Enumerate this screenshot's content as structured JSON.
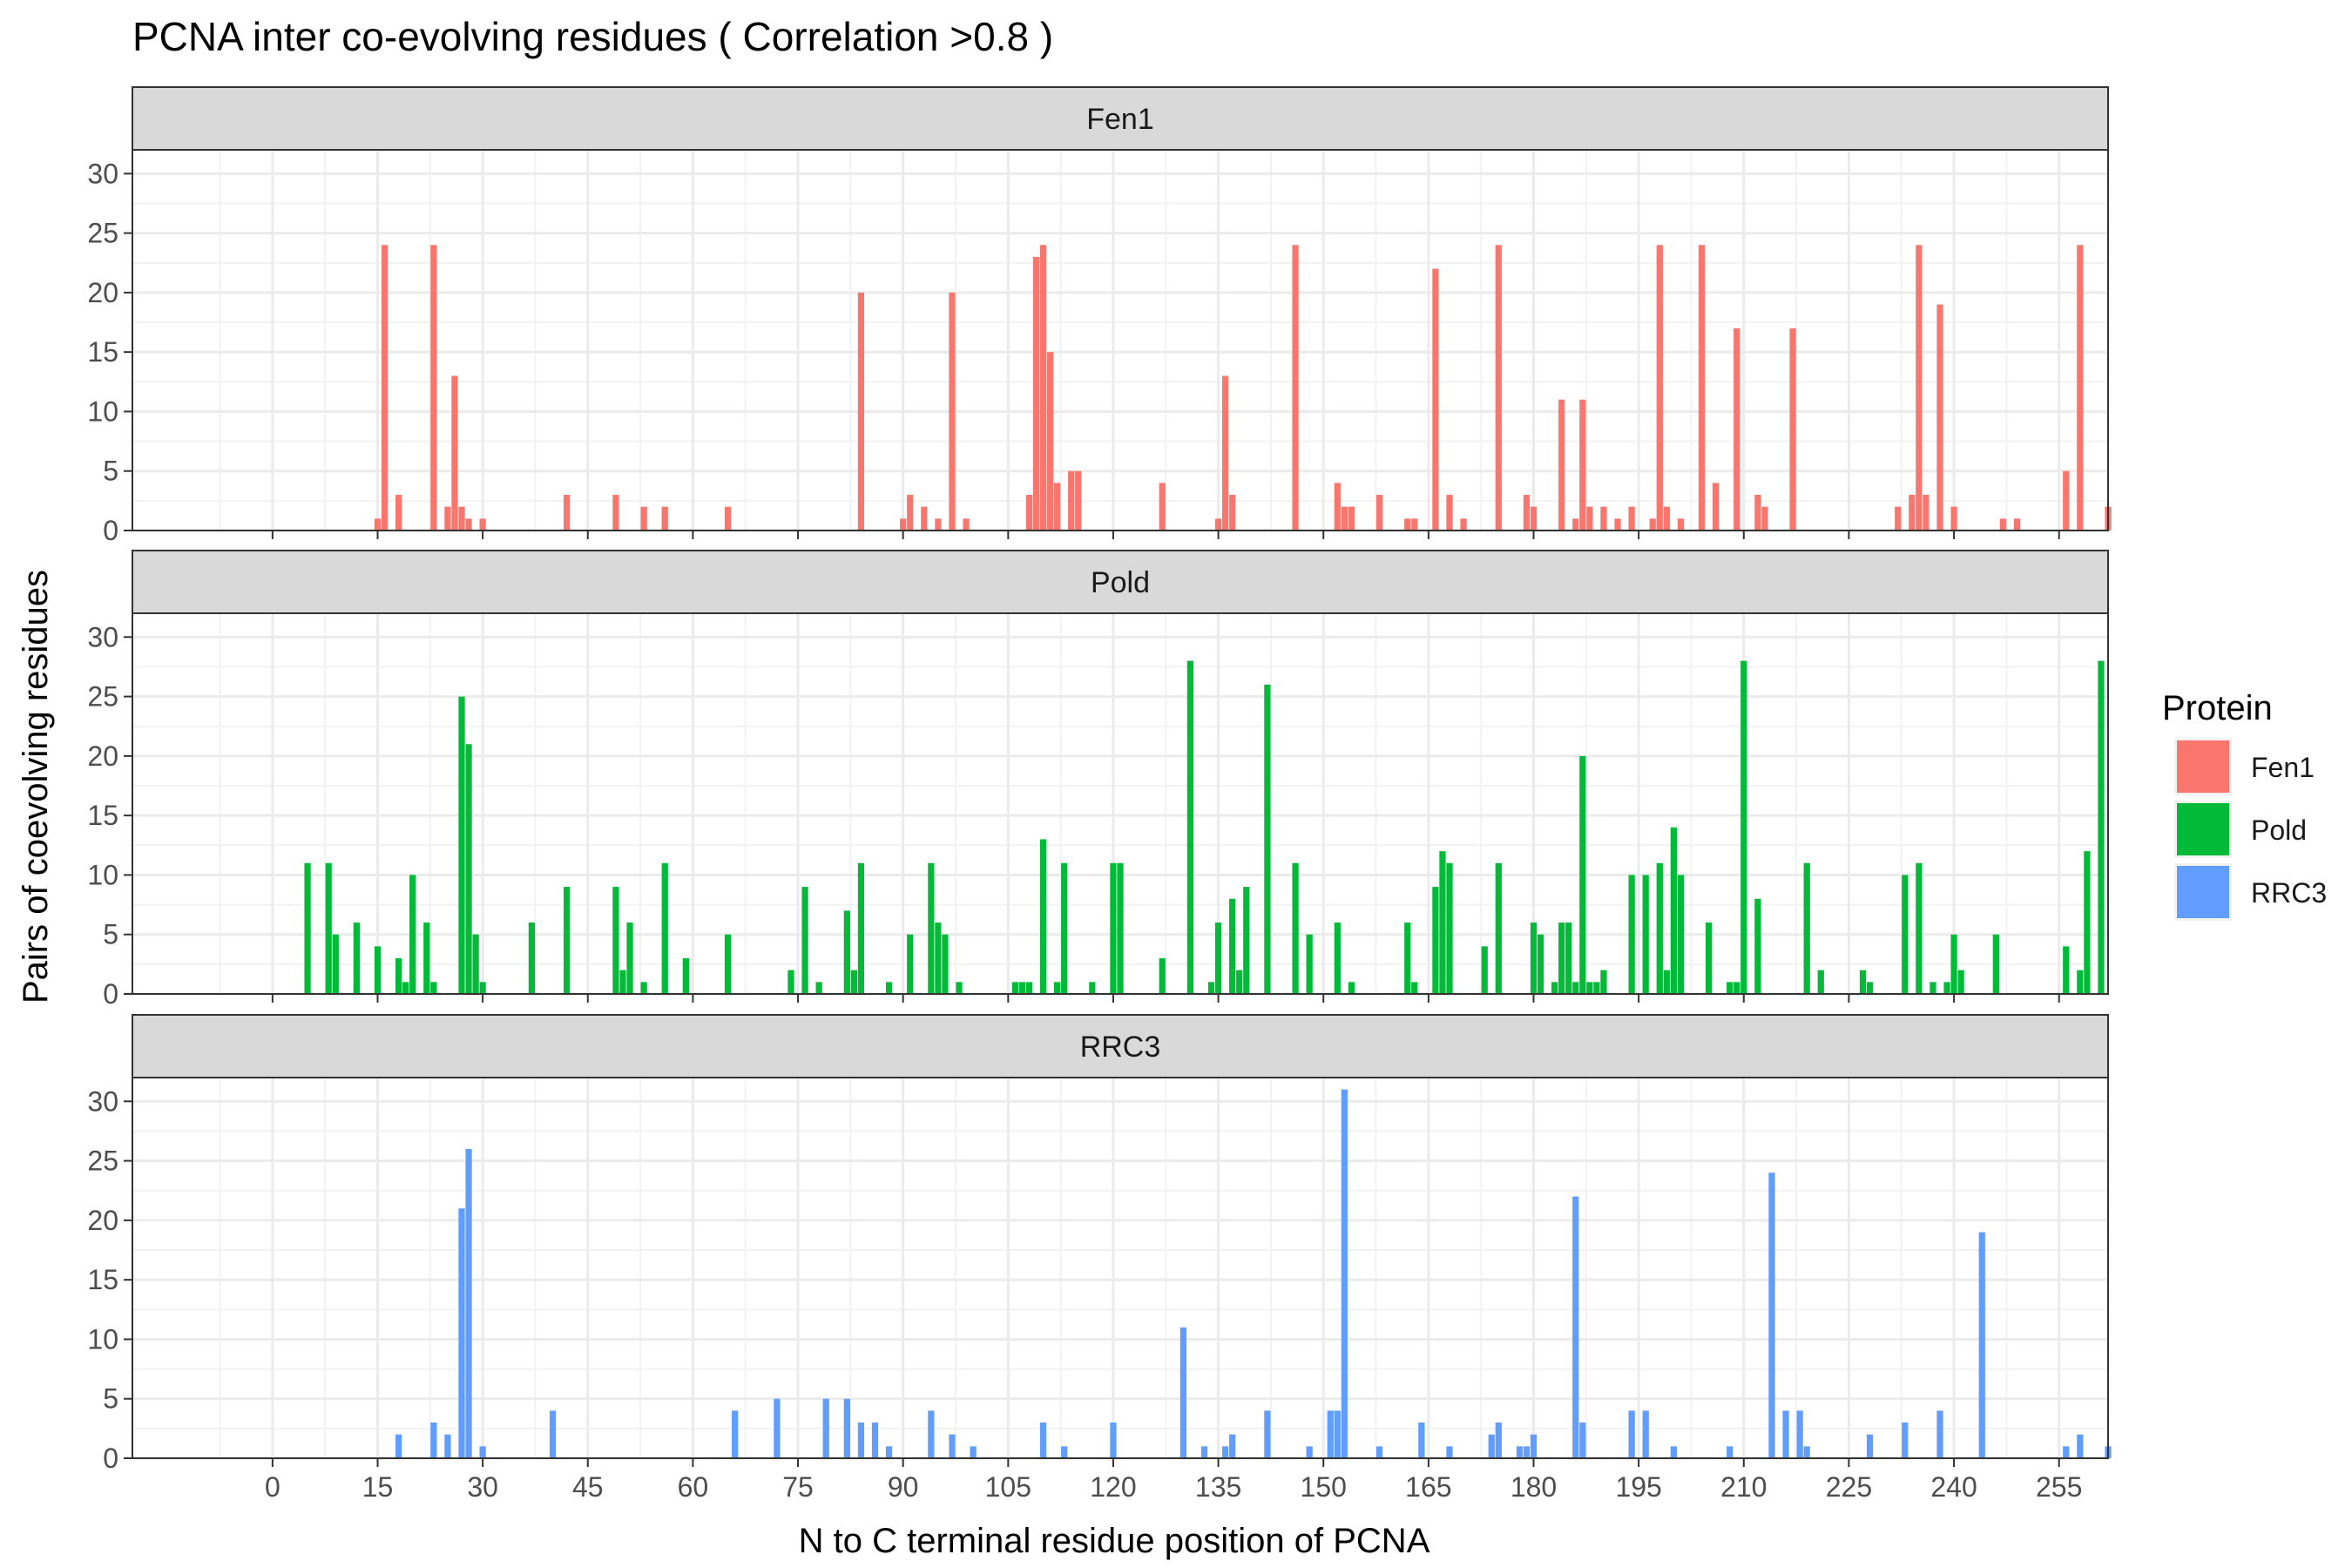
{
  "chart_data": {
    "type": "bar",
    "title": "PCNA inter co-evolving residues ( Correlation >0.8 )",
    "xlabel": "N to C terminal residue position of PCNA",
    "ylabel": "Pairs of coevolving residues",
    "xlim": [
      -20,
      262
    ],
    "ylim": [
      0,
      32
    ],
    "x_ticks": [
      0,
      15,
      30,
      45,
      60,
      75,
      90,
      105,
      120,
      135,
      150,
      165,
      180,
      195,
      210,
      225,
      240,
      255
    ],
    "y_ticks": [
      0,
      5,
      10,
      15,
      20,
      25,
      30
    ],
    "grid": true,
    "facet_by": "Protein",
    "legend": {
      "title": "Protein",
      "position": "right"
    },
    "series": [
      {
        "name": "Fen1",
        "color": "#F8766D",
        "points": [
          [
            15,
            1
          ],
          [
            16,
            24
          ],
          [
            18,
            3
          ],
          [
            23,
            24
          ],
          [
            25,
            2
          ],
          [
            26,
            13
          ],
          [
            27,
            2
          ],
          [
            28,
            1
          ],
          [
            30,
            1
          ],
          [
            42,
            3
          ],
          [
            49,
            3
          ],
          [
            53,
            2
          ],
          [
            56,
            2
          ],
          [
            65,
            2
          ],
          [
            84,
            20
          ],
          [
            90,
            1
          ],
          [
            91,
            3
          ],
          [
            93,
            2
          ],
          [
            95,
            1
          ],
          [
            97,
            20
          ],
          [
            99,
            1
          ],
          [
            108,
            3
          ],
          [
            109,
            23
          ],
          [
            110,
            24
          ],
          [
            111,
            15
          ],
          [
            112,
            4
          ],
          [
            114,
            5
          ],
          [
            115,
            5
          ],
          [
            127,
            4
          ],
          [
            135,
            1
          ],
          [
            136,
            13
          ],
          [
            137,
            3
          ],
          [
            146,
            24
          ],
          [
            152,
            4
          ],
          [
            153,
            2
          ],
          [
            154,
            2
          ],
          [
            158,
            3
          ],
          [
            162,
            1
          ],
          [
            163,
            1
          ],
          [
            166,
            22
          ],
          [
            168,
            3
          ],
          [
            170,
            1
          ],
          [
            175,
            24
          ],
          [
            179,
            3
          ],
          [
            180,
            2
          ],
          [
            184,
            11
          ],
          [
            186,
            1
          ],
          [
            187,
            11
          ],
          [
            188,
            2
          ],
          [
            190,
            2
          ],
          [
            192,
            1
          ],
          [
            194,
            2
          ],
          [
            197,
            1
          ],
          [
            198,
            24
          ],
          [
            199,
            2
          ],
          [
            201,
            1
          ],
          [
            204,
            24
          ],
          [
            206,
            4
          ],
          [
            209,
            17
          ],
          [
            212,
            3
          ],
          [
            213,
            2
          ],
          [
            217,
            17
          ],
          [
            232,
            2
          ],
          [
            234,
            3
          ],
          [
            235,
            24
          ],
          [
            236,
            3
          ],
          [
            238,
            19
          ],
          [
            240,
            2
          ],
          [
            247,
            1
          ],
          [
            249,
            1
          ],
          [
            256,
            5
          ],
          [
            258,
            24
          ],
          [
            262,
            2
          ]
        ]
      },
      {
        "name": "Pold",
        "color": "#00BA38",
        "points": [
          [
            5,
            11
          ],
          [
            8,
            11
          ],
          [
            9,
            5
          ],
          [
            12,
            6
          ],
          [
            15,
            4
          ],
          [
            18,
            3
          ],
          [
            19,
            1
          ],
          [
            20,
            10
          ],
          [
            22,
            6
          ],
          [
            23,
            1
          ],
          [
            27,
            25
          ],
          [
            28,
            21
          ],
          [
            29,
            5
          ],
          [
            30,
            1
          ],
          [
            37,
            6
          ],
          [
            42,
            9
          ],
          [
            49,
            9
          ],
          [
            50,
            2
          ],
          [
            51,
            6
          ],
          [
            53,
            1
          ],
          [
            56,
            11
          ],
          [
            59,
            3
          ],
          [
            65,
            5
          ],
          [
            74,
            2
          ],
          [
            76,
            9
          ],
          [
            78,
            1
          ],
          [
            82,
            7
          ],
          [
            83,
            2
          ],
          [
            84,
            11
          ],
          [
            88,
            1
          ],
          [
            91,
            5
          ],
          [
            94,
            11
          ],
          [
            95,
            6
          ],
          [
            96,
            5
          ],
          [
            98,
            1
          ],
          [
            106,
            1
          ],
          [
            107,
            1
          ],
          [
            108,
            1
          ],
          [
            110,
            13
          ],
          [
            112,
            1
          ],
          [
            113,
            11
          ],
          [
            117,
            1
          ],
          [
            120,
            11
          ],
          [
            121,
            11
          ],
          [
            127,
            3
          ],
          [
            131,
            28
          ],
          [
            134,
            1
          ],
          [
            135,
            6
          ],
          [
            137,
            8
          ],
          [
            138,
            2
          ],
          [
            139,
            9
          ],
          [
            142,
            26
          ],
          [
            146,
            11
          ],
          [
            148,
            5
          ],
          [
            152,
            6
          ],
          [
            154,
            1
          ],
          [
            162,
            6
          ],
          [
            163,
            1
          ],
          [
            166,
            9
          ],
          [
            167,
            12
          ],
          [
            168,
            11
          ],
          [
            173,
            4
          ],
          [
            175,
            11
          ],
          [
            180,
            6
          ],
          [
            181,
            5
          ],
          [
            183,
            1
          ],
          [
            184,
            6
          ],
          [
            185,
            6
          ],
          [
            186,
            1
          ],
          [
            187,
            20
          ],
          [
            188,
            1
          ],
          [
            189,
            1
          ],
          [
            190,
            2
          ],
          [
            194,
            10
          ],
          [
            196,
            10
          ],
          [
            198,
            11
          ],
          [
            199,
            2
          ],
          [
            200,
            14
          ],
          [
            201,
            10
          ],
          [
            205,
            6
          ],
          [
            208,
            1
          ],
          [
            209,
            1
          ],
          [
            210,
            28
          ],
          [
            212,
            8
          ],
          [
            219,
            11
          ],
          [
            221,
            2
          ],
          [
            227,
            2
          ],
          [
            228,
            1
          ],
          [
            233,
            10
          ],
          [
            235,
            11
          ],
          [
            237,
            1
          ],
          [
            239,
            1
          ],
          [
            240,
            5
          ],
          [
            241,
            2
          ],
          [
            246,
            5
          ],
          [
            256,
            4
          ],
          [
            258,
            2
          ],
          [
            259,
            12
          ],
          [
            261,
            28
          ]
        ]
      },
      {
        "name": "RRC3",
        "color": "#619CFF",
        "points": [
          [
            18,
            2
          ],
          [
            23,
            3
          ],
          [
            25,
            2
          ],
          [
            27,
            21
          ],
          [
            28,
            26
          ],
          [
            30,
            1
          ],
          [
            40,
            4
          ],
          [
            66,
            4
          ],
          [
            72,
            5
          ],
          [
            79,
            5
          ],
          [
            82,
            5
          ],
          [
            84,
            3
          ],
          [
            86,
            3
          ],
          [
            88,
            1
          ],
          [
            94,
            4
          ],
          [
            97,
            2
          ],
          [
            100,
            1
          ],
          [
            110,
            3
          ],
          [
            113,
            1
          ],
          [
            120,
            3
          ],
          [
            130,
            11
          ],
          [
            133,
            1
          ],
          [
            136,
            1
          ],
          [
            137,
            2
          ],
          [
            142,
            4
          ],
          [
            148,
            1
          ],
          [
            151,
            4
          ],
          [
            152,
            4
          ],
          [
            153,
            31
          ],
          [
            158,
            1
          ],
          [
            164,
            3
          ],
          [
            168,
            1
          ],
          [
            174,
            2
          ],
          [
            175,
            3
          ],
          [
            178,
            1
          ],
          [
            179,
            1
          ],
          [
            180,
            2
          ],
          [
            186,
            22
          ],
          [
            187,
            3
          ],
          [
            194,
            4
          ],
          [
            196,
            4
          ],
          [
            200,
            1
          ],
          [
            208,
            1
          ],
          [
            214,
            24
          ],
          [
            216,
            4
          ],
          [
            218,
            4
          ],
          [
            219,
            1
          ],
          [
            228,
            2
          ],
          [
            233,
            3
          ],
          [
            238,
            4
          ],
          [
            244,
            19
          ],
          [
            256,
            1
          ],
          [
            258,
            2
          ],
          [
            262,
            1
          ]
        ]
      }
    ]
  }
}
